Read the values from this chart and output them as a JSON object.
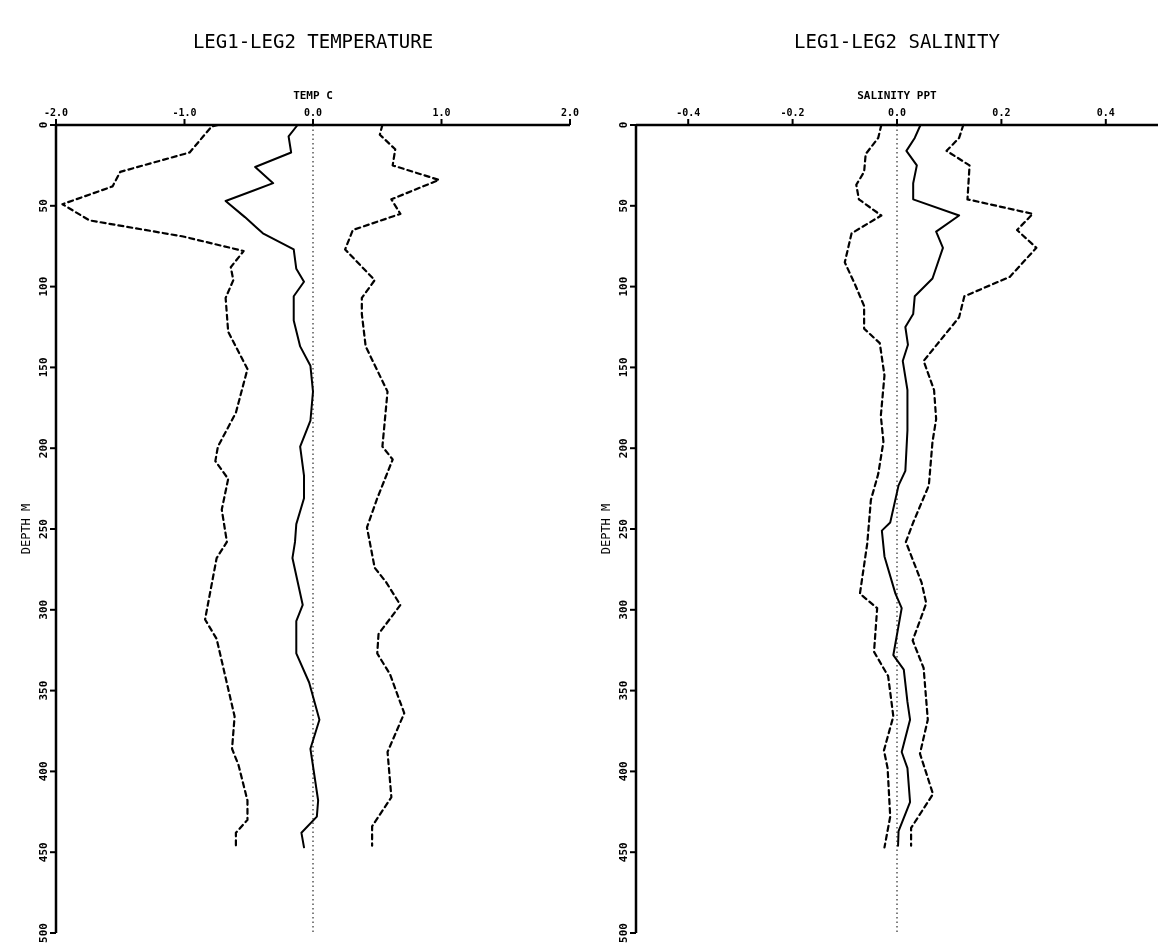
{
  "chart_data": [
    {
      "type": "line",
      "title": "LEG1-LEG2 TEMPERATURE",
      "xlabel": "TEMP C",
      "ylabel": "DEPTH M",
      "xlim": [
        -2.0,
        2.0
      ],
      "xticks": [
        {
          "value": -2,
          "label": "-2.0"
        },
        {
          "value": -1,
          "label": "-1.0"
        },
        {
          "value": 0,
          "label": "0.0"
        },
        {
          "value": 1,
          "label": "1.0"
        },
        {
          "value": 2,
          "label": "2.0"
        }
      ],
      "ylim": [
        500,
        0
      ],
      "yticks": [
        0,
        50,
        100,
        150,
        200,
        250,
        300,
        350,
        400,
        450,
        500
      ],
      "grid": false,
      "marker": "none",
      "ref_lines": [
        {
          "axis": "x",
          "value": 0,
          "line_style": "dotted",
          "color": "#000000"
        }
      ],
      "series": [
        {
          "color": "#000000",
          "line_style": "solid",
          "x": [
            -0.12,
            -0.19,
            -0.17,
            -0.45,
            -0.31,
            -0.68,
            -0.53,
            -0.39,
            -0.15,
            -0.13,
            -0.07,
            -0.15,
            -0.15,
            -0.1,
            -0.02,
            0.0,
            -0.02,
            -0.1,
            -0.07,
            -0.07,
            -0.13,
            -0.14,
            -0.16,
            -0.08,
            -0.13,
            -0.13,
            -0.03,
            0.05,
            -0.02,
            0.04,
            0.03,
            -0.09,
            -0.07
          ],
          "values": [
            0,
            7,
            17,
            26,
            36,
            47,
            57,
            67,
            77,
            89,
            97,
            106,
            121,
            137,
            149,
            165,
            183,
            199,
            217,
            231,
            247,
            258,
            268,
            297,
            307,
            327,
            345,
            368,
            386,
            418,
            428,
            438,
            447
          ]
        },
        {
          "color": "#000000",
          "line_style": "dashed",
          "x": [
            -0.74,
            -0.79,
            -0.96,
            -1.5,
            -1.56,
            -1.95,
            -1.74,
            -1.01,
            -0.54,
            -0.64,
            -0.62,
            -0.68,
            -0.66,
            -0.51,
            -0.6,
            -0.74,
            -0.76,
            -0.66,
            -0.71,
            -0.67,
            -0.75,
            -0.84,
            -0.75,
            -0.61,
            -0.63,
            -0.58,
            -0.51,
            -0.51,
            -0.6,
            -0.6
          ],
          "values": [
            0,
            1,
            17,
            29,
            38,
            49,
            59,
            69,
            78,
            88,
            96,
            107,
            128,
            151,
            178,
            199,
            208,
            219,
            238,
            258,
            268,
            306,
            318,
            366,
            386,
            396,
            418,
            430,
            438,
            448
          ]
        },
        {
          "color": "#000000",
          "line_style": "dashed",
          "x": [
            0.54,
            0.52,
            0.64,
            0.62,
            0.98,
            0.61,
            0.68,
            0.31,
            0.25,
            0.48,
            0.38,
            0.38,
            0.41,
            0.58,
            0.54,
            0.62,
            0.5,
            0.42,
            0.48,
            0.57,
            0.68,
            0.51,
            0.5,
            0.6,
            0.71,
            0.58,
            0.61,
            0.46,
            0.46
          ],
          "values": [
            0,
            6,
            15,
            25,
            34,
            46,
            55,
            65,
            77,
            96,
            107,
            117,
            137,
            165,
            199,
            207,
            231,
            249,
            274,
            283,
            297,
            315,
            327,
            340,
            364,
            388,
            416,
            434,
            446
          ]
        }
      ]
    },
    {
      "type": "line",
      "title": "LEG1-LEG2 SALINITY",
      "xlabel": "SALINITY PPT",
      "ylabel": "DEPTH M",
      "xlim": [
        -0.5,
        0.5
      ],
      "xticks": [
        {
          "value": -0.4,
          "label": "-0.4"
        },
        {
          "value": -0.2,
          "label": "-0.2"
        },
        {
          "value": 0,
          "label": "0.0"
        },
        {
          "value": 0.2,
          "label": "0.2"
        },
        {
          "value": 0.4,
          "label": "0.4"
        }
      ],
      "ylim": [
        500,
        0
      ],
      "yticks": [
        0,
        50,
        100,
        150,
        200,
        250,
        300,
        350,
        400,
        450,
        500
      ],
      "grid": false,
      "marker": "none",
      "ref_lines": [
        {
          "axis": "x",
          "value": 0,
          "line_style": "dotted",
          "color": "#000000"
        }
      ],
      "series": [
        {
          "color": "#000000",
          "line_style": "solid",
          "x": [
            0.045,
            0.034,
            0.018,
            0.038,
            0.031,
            0.031,
            0.119,
            0.075,
            0.088,
            0.068,
            0.034,
            0.031,
            0.016,
            0.021,
            0.011,
            0.02,
            0.02,
            0.016,
            0.003,
            -0.013,
            -0.029,
            -0.024,
            -0.003,
            0.009,
            -0.007,
            0.013,
            0.02,
            0.025,
            0.009,
            0.02,
            0.025,
            0.003,
            0.002
          ],
          "values": [
            0,
            8,
            16,
            25,
            36,
            46,
            56,
            66,
            76,
            95,
            106,
            117,
            125,
            136,
            146,
            164,
            189,
            214,
            223,
            246,
            251,
            267,
            290,
            299,
            328,
            337,
            357,
            368,
            388,
            398,
            419,
            437,
            446
          ]
        },
        {
          "color": "#000000",
          "line_style": "dashed",
          "x": [
            -0.03,
            -0.036,
            -0.06,
            -0.063,
            -0.078,
            -0.073,
            -0.03,
            -0.087,
            -0.1,
            -0.08,
            -0.063,
            -0.063,
            -0.033,
            -0.024,
            -0.031,
            -0.026,
            -0.036,
            -0.05,
            -0.057,
            -0.071,
            -0.038,
            -0.044,
            -0.017,
            -0.007,
            -0.025,
            -0.018,
            -0.013,
            -0.024
          ],
          "values": [
            0,
            8,
            18,
            29,
            37,
            46,
            56,
            67,
            85,
            99,
            112,
            126,
            135,
            155,
            180,
            196,
            216,
            232,
            259,
            290,
            299,
            326,
            341,
            366,
            387,
            398,
            428,
            447
          ]
        },
        {
          "color": "#000000",
          "line_style": "dashed",
          "x": [
            0.127,
            0.119,
            0.095,
            0.139,
            0.135,
            0.26,
            0.23,
            0.267,
            0.216,
            0.129,
            0.119,
            0.051,
            0.071,
            0.075,
            0.068,
            0.061,
            0.031,
            0.017,
            0.047,
            0.056,
            0.03,
            0.051,
            0.059,
            0.044,
            0.069,
            0.027,
            0.027
          ],
          "values": [
            0,
            8,
            16,
            25,
            46,
            55,
            65,
            76,
            94,
            106,
            119,
            146,
            164,
            182,
            196,
            223,
            246,
            258,
            283,
            296,
            319,
            336,
            368,
            389,
            414,
            435,
            446
          ]
        }
      ]
    }
  ]
}
